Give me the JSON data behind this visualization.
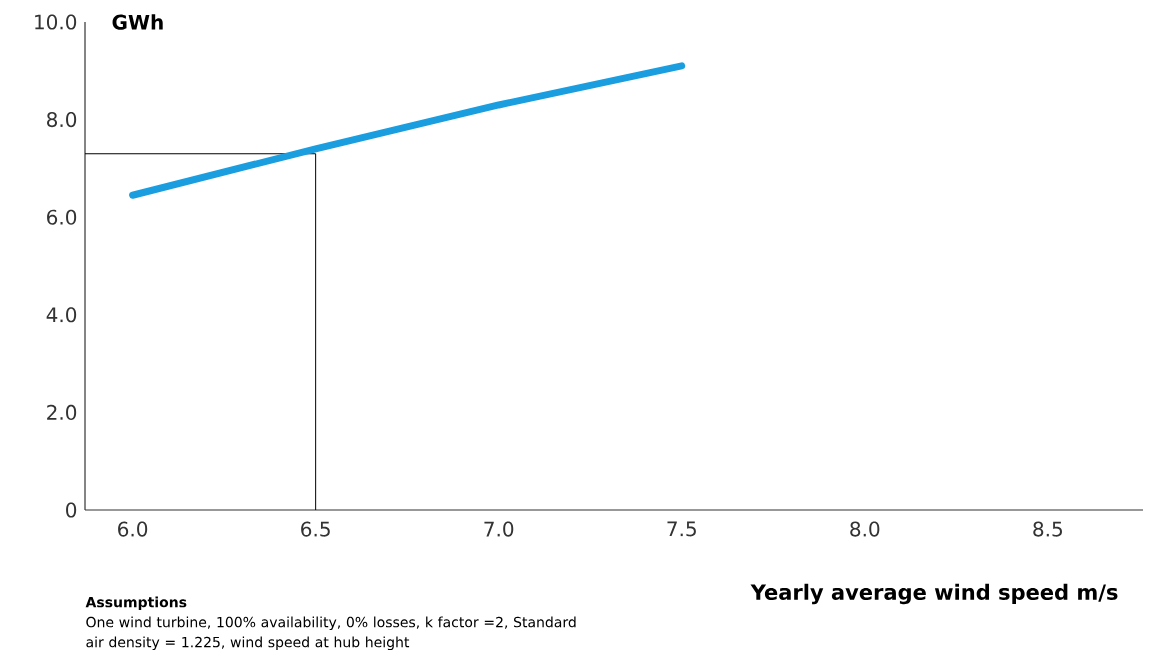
{
  "chart_data": {
    "type": "line",
    "ylabel": "GWh",
    "xlabel": "Yearly average wind speed m/s",
    "x": [
      6.0,
      6.5,
      7.0,
      7.5
    ],
    "series": [
      {
        "color": "#1a9ee0",
        "values": [
          6.45,
          7.4,
          8.3,
          9.1
        ]
      }
    ],
    "xlim": [
      5.87,
      8.76
    ],
    "xticks": [
      {
        "value": 6.0,
        "label": "6.0"
      },
      {
        "value": 6.5,
        "label": "6.5"
      },
      {
        "value": 7.0,
        "label": "7.0"
      },
      {
        "value": 7.5,
        "label": "7.5"
      },
      {
        "value": 8.0,
        "label": "8.0"
      },
      {
        "value": 8.5,
        "label": "8.5"
      }
    ],
    "ylim": [
      0,
      10
    ],
    "yticks": [
      0,
      {
        "value": 2,
        "label": "2.0"
      },
      {
        "value": 4,
        "label": "4.0"
      },
      {
        "value": 6,
        "label": "6.0"
      },
      {
        "value": 8,
        "label": "8.0"
      },
      {
        "value": 10,
        "label": "10.0"
      }
    ],
    "ref_lines": [
      {
        "axis": "x",
        "value": 6.5,
        "color": "#000000"
      },
      {
        "axis": "y",
        "value": 7.3,
        "color": "#000000"
      }
    ],
    "annotations": [
      "Assumptions",
      "One wind turbine, 100% availability, 0% losses, k factor =2, Standard air density = 1.225, wind speed at hub height"
    ],
    "grid": false,
    "marker": "none",
    "line_style": "solid"
  }
}
